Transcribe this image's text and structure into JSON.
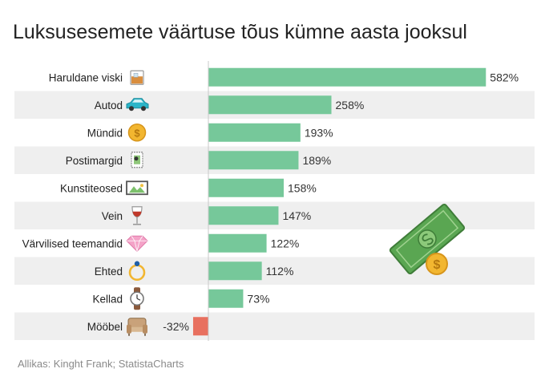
{
  "title": "Luksusesemete väärtuse tõus kümne aasta jooksul",
  "source": "Allikas: Kinght Frank; StatistaCharts",
  "colors": {
    "positive": "#76c89a",
    "negative": "#e8705f",
    "stripe": "#efefef",
    "axis": "#c8c8c8",
    "text": "#333333"
  },
  "chart_data": {
    "type": "bar",
    "orientation": "horizontal",
    "title": "Luksusesemete väärtuse tõus kümne aasta jooksul",
    "xlabel": "",
    "ylabel": "",
    "unit": "%",
    "xlim": [
      -40,
      600
    ],
    "grid": false,
    "categories": [
      "Haruldane viski",
      "Autod",
      "Mündid",
      "Postimargid",
      "Kunstiteosed",
      "Vein",
      "Värvilised teemandid",
      "Ehted",
      "Kellad",
      "Mööbel"
    ],
    "icons": [
      "whisky-glass-icon",
      "car-icon",
      "coin-icon",
      "stamp-icon",
      "painting-icon",
      "wine-glass-icon",
      "diamond-icon",
      "ring-icon",
      "watch-icon",
      "armchair-icon"
    ],
    "values": [
      582,
      258,
      193,
      189,
      158,
      147,
      122,
      112,
      73,
      -32
    ],
    "value_labels": [
      "582%",
      "258%",
      "193%",
      "189%",
      "158%",
      "147%",
      "122%",
      "112%",
      "73%",
      "-32%"
    ]
  },
  "decoration": {
    "icon": "money-bill-icon"
  }
}
